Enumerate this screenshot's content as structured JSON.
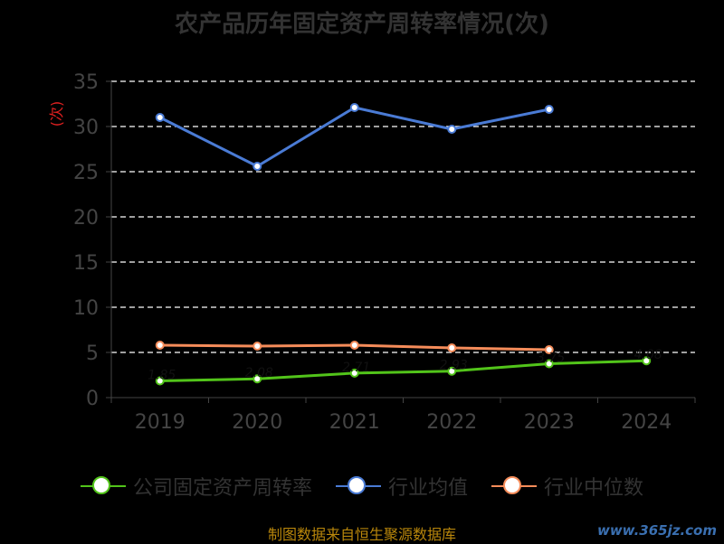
{
  "title": "农产品历年固定资产周转率情况(次)",
  "source": "制图数据来自恒生聚源数据库",
  "watermark": "www.365jz.com",
  "chart_data": {
    "type": "line",
    "title": "农产品历年固定资产周转率情况(次)",
    "ylabel": "(次)",
    "xlabel": "",
    "categories": [
      "2019",
      "2020",
      "2021",
      "2022",
      "2023",
      "2024"
    ],
    "ylim": [
      0,
      35
    ],
    "yticks": [
      0,
      5,
      10,
      15,
      20,
      25,
      30,
      35
    ],
    "grid": true,
    "legend_position": "bottom",
    "series": [
      {
        "name": "公司固定资产周转率",
        "color": "#52c41a",
        "values": [
          1.85,
          2.08,
          2.71,
          2.93,
          3.75,
          4.08
        ],
        "labels": [
          "1.85",
          "2.08",
          "2.71",
          "2.93",
          "3.75",
          "4.08"
        ]
      },
      {
        "name": "行业均值",
        "color": "#4a7bd5",
        "values": [
          31.0,
          25.6,
          32.1,
          29.7,
          31.9,
          null
        ]
      },
      {
        "name": "行业中位数",
        "color": "#f58c5a",
        "values": [
          5.8,
          5.7,
          5.8,
          5.5,
          5.3,
          null
        ]
      }
    ]
  }
}
